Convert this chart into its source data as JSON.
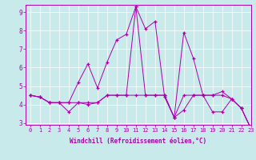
{
  "xlabel": "Windchill (Refroidissement éolien,°C)",
  "bg_color": "#c8eaea",
  "line_color": "#aa00aa",
  "xlim": [
    -0.5,
    23
  ],
  "ylim": [
    2.9,
    9.4
  ],
  "xticks": [
    0,
    1,
    2,
    3,
    4,
    5,
    6,
    7,
    8,
    9,
    10,
    11,
    12,
    13,
    14,
    15,
    16,
    17,
    18,
    19,
    20,
    21,
    22,
    23
  ],
  "yticks": [
    3,
    4,
    5,
    6,
    7,
    8,
    9
  ],
  "series": [
    [
      4.5,
      4.4,
      4.1,
      4.1,
      4.1,
      5.2,
      6.2,
      4.9,
      6.3,
      7.5,
      7.8,
      9.3,
      8.1,
      8.5,
      4.4,
      3.3,
      3.7,
      4.5,
      4.5,
      4.5,
      4.7,
      4.3,
      3.8,
      2.7
    ],
    [
      4.5,
      4.4,
      4.1,
      4.1,
      3.6,
      4.1,
      4.0,
      4.1,
      4.5,
      4.5,
      4.5,
      9.3,
      4.5,
      4.5,
      4.5,
      3.3,
      7.9,
      6.5,
      4.5,
      3.6,
      3.6,
      4.3,
      3.8,
      2.7
    ],
    [
      4.5,
      4.4,
      4.1,
      4.1,
      4.1,
      4.1,
      4.1,
      4.1,
      4.5,
      4.5,
      4.5,
      4.5,
      4.5,
      4.5,
      4.5,
      3.3,
      4.5,
      4.5,
      4.5,
      4.5,
      4.5,
      4.3,
      3.8,
      2.7
    ]
  ],
  "tick_fontsize": 5.0,
  "xlabel_fontsize": 5.5,
  "grid_color": "#ffffff",
  "spine_color": "#aa00aa"
}
